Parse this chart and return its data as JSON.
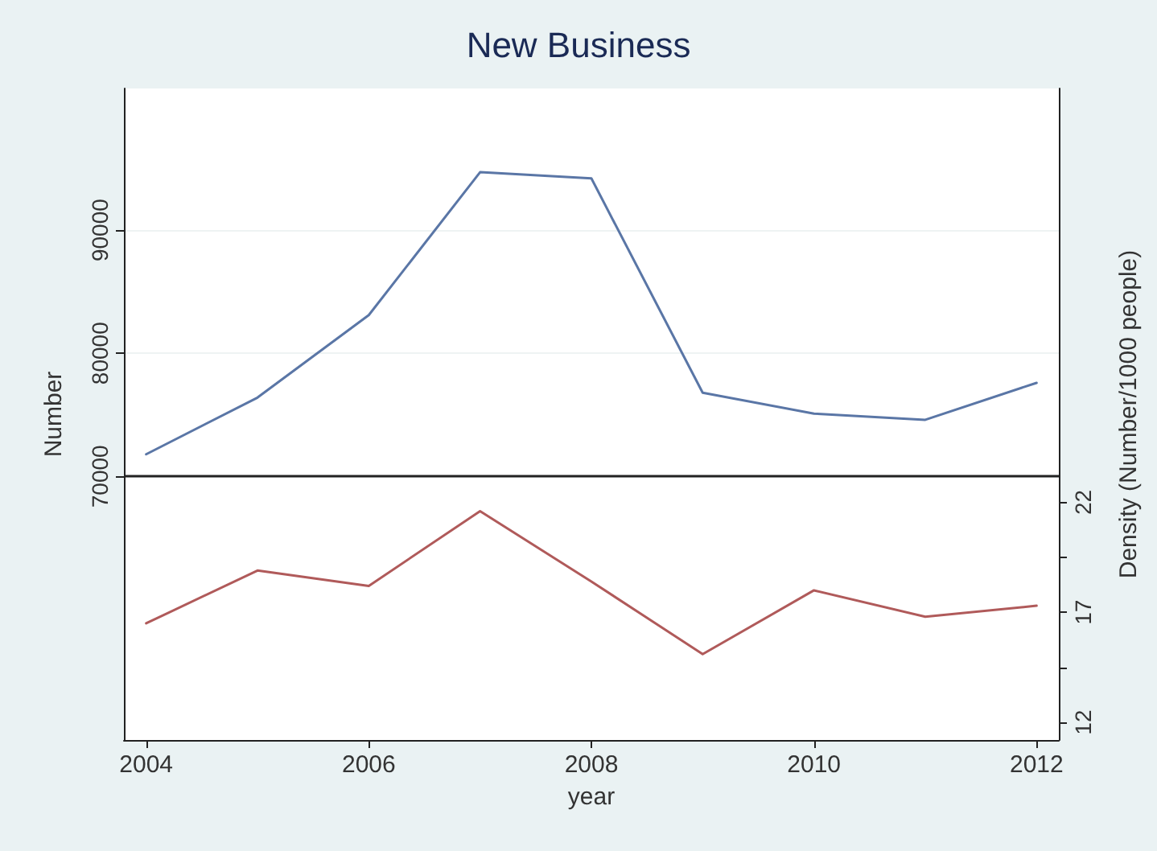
{
  "chart_data": {
    "type": "line",
    "title": "New Business",
    "xlabel": "year",
    "ylabel": "Number",
    "y2label": "Density (Number/1000 people)",
    "x": [
      2004,
      2005,
      2006,
      2007,
      2008,
      2009,
      2010,
      2011,
      2012
    ],
    "series": [
      {
        "color": "#5a76a6",
        "values": [
          71800,
          76400,
          83100,
          94700,
          94200,
          76800,
          75100,
          74600,
          77600
        ]
      },
      {
        "color": "#b05a5a",
        "axis": "y2",
        "values": [
          16.5,
          18.9,
          18.2,
          21.6,
          18.4,
          15.1,
          18.0,
          16.8,
          17.3
        ]
      }
    ],
    "xlim": [
      2003.8,
      2012.2
    ],
    "xticks": [
      2004,
      2006,
      2008,
      2010,
      2012
    ],
    "ylim": [
      48600,
      101500
    ],
    "yticks": [
      70000,
      80000,
      90000
    ],
    "y2lim": [
      11.2,
      40.8
    ],
    "y2ticks": [
      12,
      {
        "value": 14.5,
        "label": null
      },
      17,
      {
        "value": 19.5,
        "label": null
      },
      22
    ],
    "ref_lines": [
      {
        "axis": "y",
        "value": 70000,
        "color": "#222222"
      }
    ],
    "grid": "y",
    "marker": "none",
    "line_style": "solid"
  }
}
